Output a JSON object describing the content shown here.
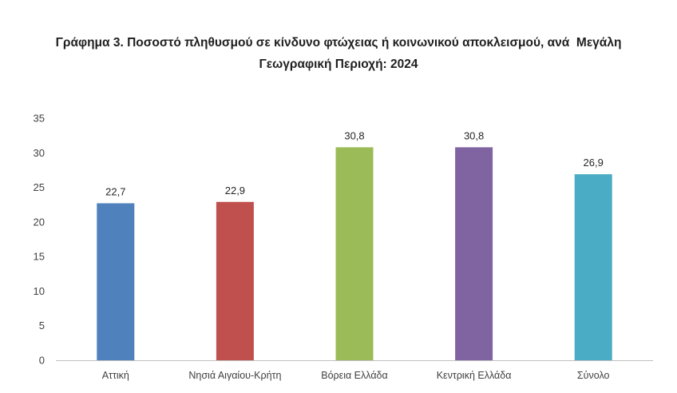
{
  "chart_data": {
    "type": "bar",
    "title": "Γράφημα 3. Ποσοστό πληθυσμού σε κίνδυνο φτώχειας ή κοινωνικού αποκλεισμού, ανά  Μεγάλη Γεωγραφική Περιοχή: 2024",
    "title_lines": [
      "Γράφημα 3. Ποσοστό πληθυσμού σε κίνδυνο φτώχειας ή κοινωνικού αποκλεισμού, ανά  Μεγάλη",
      "Γεωγραφική Περιοχή: 2024"
    ],
    "categories": [
      "Αττική",
      "Νησιά Αιγαίου-Κρήτη",
      "Βόρεια Ελλάδα",
      "Κεντρική Ελλάδα",
      "Σύνολο"
    ],
    "values": [
      22.7,
      22.9,
      30.8,
      30.8,
      26.9
    ],
    "value_labels": [
      "22,7",
      "22,9",
      "30,8",
      "30,8",
      "26,9"
    ],
    "colors": [
      "#4f81bd",
      "#c0504d",
      "#9bbb59",
      "#8064a2",
      "#4bacc6"
    ],
    "ylim": [
      0,
      35
    ],
    "yticks": [
      0,
      5,
      10,
      15,
      20,
      25,
      30,
      35
    ],
    "xlabel": "",
    "ylabel": "",
    "grid": false,
    "legend": false
  }
}
